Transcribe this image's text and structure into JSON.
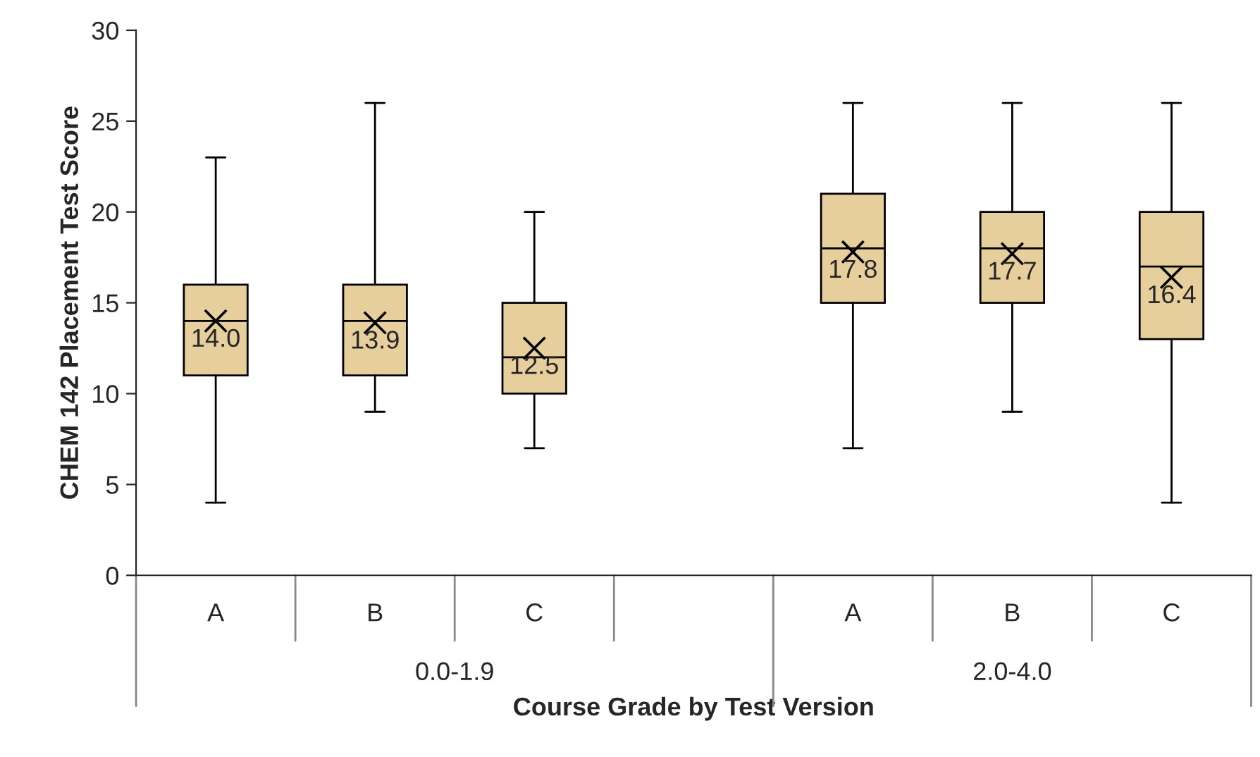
{
  "chart_data": {
    "type": "box",
    "xlabel": "Course Grade by Test Version",
    "ylabel": "CHEM 142 Placement Test Score",
    "categories": [
      "A",
      "B",
      "C",
      null,
      "A",
      "B",
      "C"
    ],
    "boxes": [
      {
        "low": 4,
        "q1": 11,
        "median": 14,
        "q3": 16,
        "high": 23,
        "mean": 14.0
      },
      {
        "low": 9,
        "q1": 11,
        "median": 14,
        "q3": 16,
        "high": 26,
        "mean": 13.9
      },
      {
        "low": 7,
        "q1": 10,
        "median": 12,
        "q3": 15,
        "high": 20,
        "mean": 12.5
      },
      null,
      {
        "low": 7,
        "q1": 15,
        "median": 18,
        "q3": 21,
        "high": 26,
        "mean": 17.8
      },
      {
        "low": 9,
        "q1": 15,
        "median": 18,
        "q3": 20,
        "high": 26,
        "mean": 17.7
      },
      {
        "low": 4,
        "q1": 13,
        "median": 17,
        "q3": 20,
        "high": 26,
        "mean": 16.4
      }
    ],
    "value_labels": [
      "14.0",
      "13.9",
      "12.5",
      null,
      "17.8",
      "17.7",
      "16.4"
    ],
    "color": "#e6cf9c",
    "marker": "cross",
    "annotations": [
      "0.0-1.9",
      "2.0-4.0"
    ],
    "ylim": [
      0,
      30
    ],
    "yticks": [
      0,
      5,
      10,
      15,
      20,
      25,
      30
    ],
    "grid": false,
    "legend": false
  }
}
